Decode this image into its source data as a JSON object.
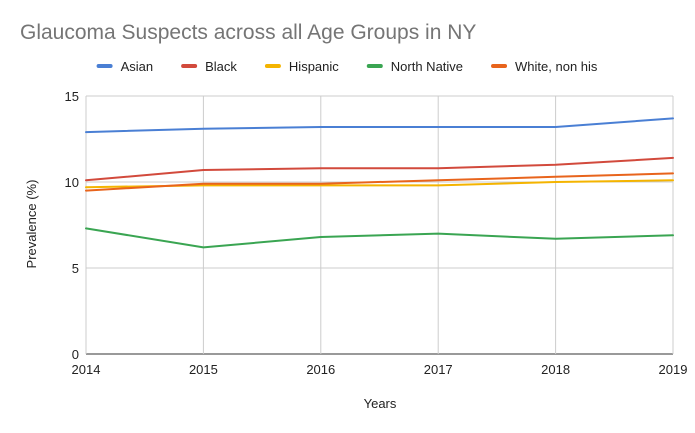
{
  "chart_data": {
    "type": "line",
    "title": "Glaucoma Suspects across all Age Groups in NY",
    "xlabel": "Years",
    "ylabel": "Prevalence (%)",
    "x": [
      "2014",
      "2015",
      "2016",
      "2017",
      "2018",
      "2019"
    ],
    "ylim": [
      0,
      15
    ],
    "yticks": [
      "0",
      "5",
      "10",
      "15"
    ],
    "grid": true,
    "legend_position": "top",
    "series": [
      {
        "name": "Asian",
        "color": "#4a7fd4",
        "values": [
          12.9,
          13.1,
          13.2,
          13.2,
          13.2,
          13.7
        ]
      },
      {
        "name": "Black",
        "color": "#d24a3c",
        "values": [
          10.1,
          10.7,
          10.8,
          10.8,
          11.0,
          11.4
        ]
      },
      {
        "name": "Hispanic",
        "color": "#f4b400",
        "values": [
          9.7,
          9.8,
          9.8,
          9.8,
          10.0,
          10.1
        ]
      },
      {
        "name": "North Native",
        "color": "#3aa552",
        "values": [
          7.3,
          6.2,
          6.8,
          7.0,
          6.7,
          6.9
        ]
      },
      {
        "name": "White, non his",
        "color": "#e8641c",
        "values": [
          9.5,
          9.9,
          9.9,
          10.1,
          10.3,
          10.5
        ]
      }
    ]
  }
}
